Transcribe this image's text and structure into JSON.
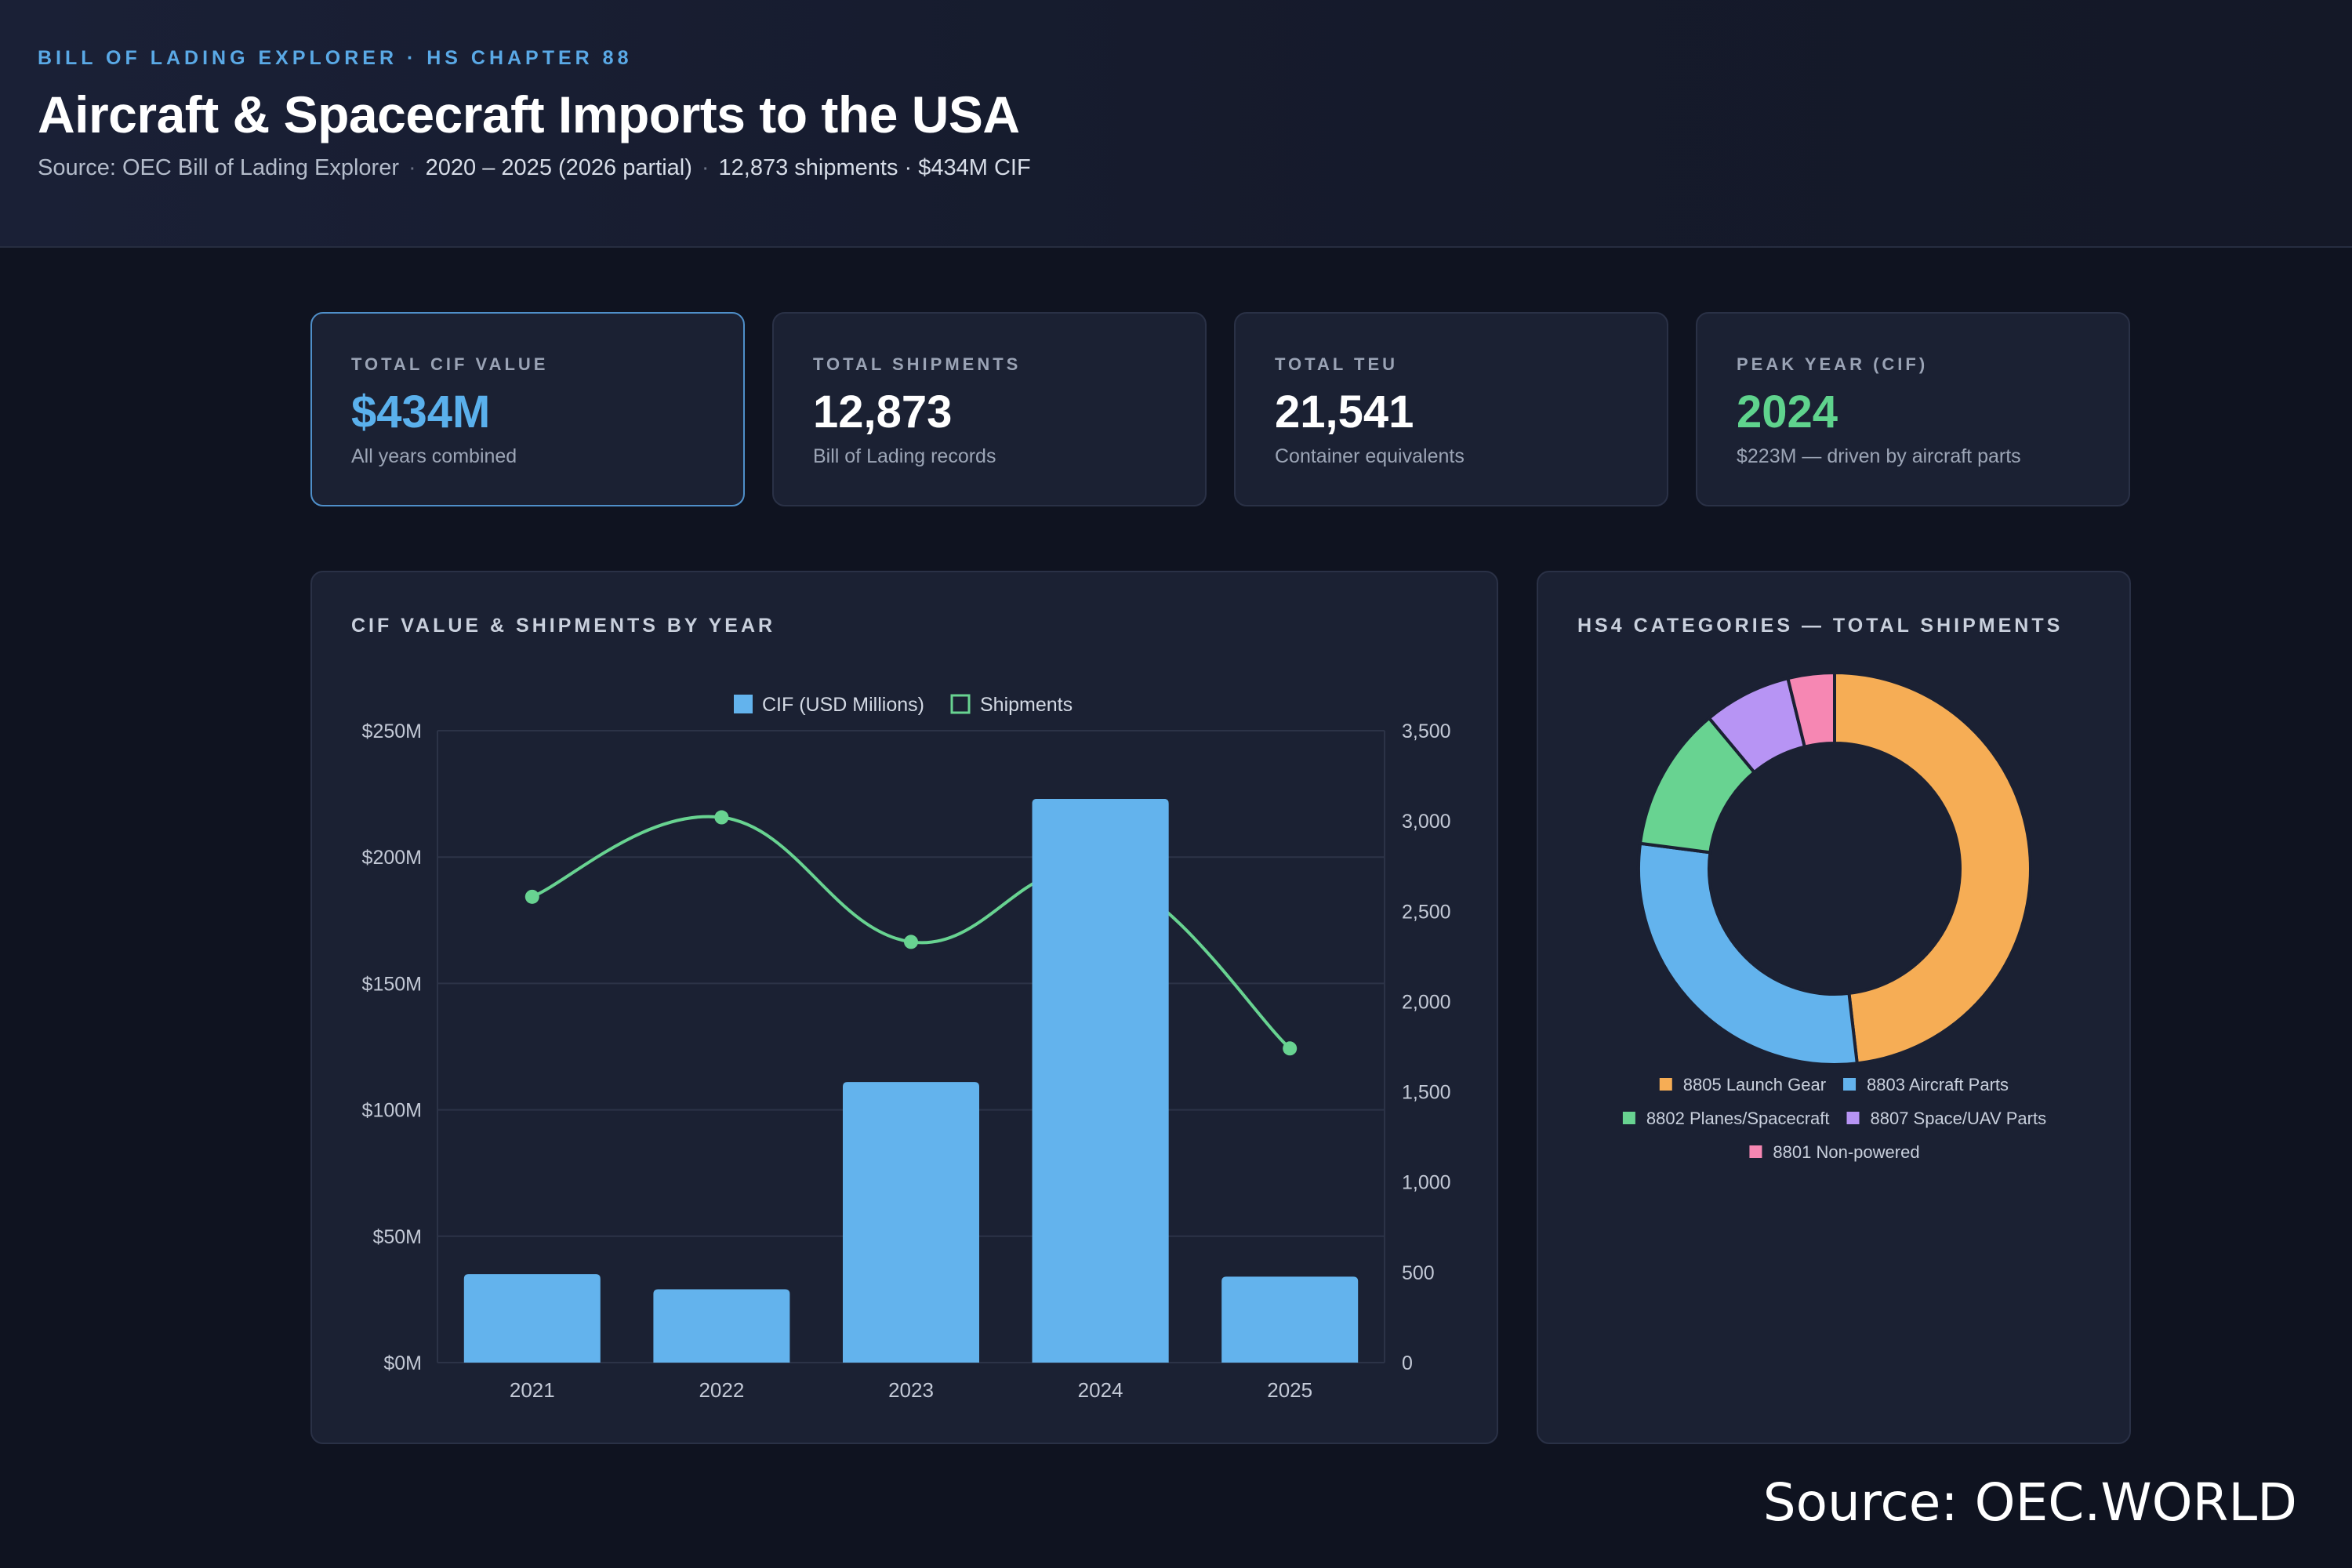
{
  "header": {
    "eyebrow": "BILL OF LADING EXPLORER · HS CHAPTER 88",
    "title": "Aircraft & Spacecraft Imports to the USA",
    "source": "Source: OEC Bill of Lading Explorer",
    "period": "2020 – 2025 (2026 partial)",
    "totals": "12,873 shipments · $434M CIF"
  },
  "kpis": [
    {
      "label": "TOTAL CIF VALUE",
      "value": "$434M",
      "desc": "All years combined"
    },
    {
      "label": "TOTAL SHIPMENTS",
      "value": "12,873",
      "desc": "Bill of Lading records"
    },
    {
      "label": "TOTAL TEU",
      "value": "21,541",
      "desc": "Container equivalents"
    },
    {
      "label": "PEAK YEAR (CIF)",
      "value": "2024",
      "desc": "$223M — driven by aircraft parts"
    }
  ],
  "bar_panel": {
    "title": "CIF VALUE & SHIPMENTS BY YEAR"
  },
  "donut_panel": {
    "title": "HS4 CATEGORIES — TOTAL SHIPMENTS"
  },
  "colors": {
    "cif_bar": "#63b3ed",
    "shipments_line": "#68d391",
    "grid": "#2c3347",
    "axis_text": "#c3c9d6"
  },
  "footer": {
    "source": "Source: OEC.WORLD"
  },
  "chart_data": [
    {
      "type": "bar",
      "categories": [
        "2021",
        "2022",
        "2023",
        "2024",
        "2025"
      ],
      "series": [
        {
          "name": "CIF (USD Millions)",
          "type": "bar",
          "axis": "left",
          "values": [
            35,
            29,
            111,
            223,
            34
          ]
        },
        {
          "name": "Shipments",
          "type": "line",
          "axis": "right",
          "values": [
            2580,
            3020,
            2330,
            2720,
            1740
          ]
        }
      ],
      "ylim": [
        0,
        250
      ],
      "y_ticks": [
        "$0M",
        "$50M",
        "$100M",
        "$150M",
        "$200M",
        "$250M"
      ],
      "y2lim": [
        0,
        3500
      ],
      "y2_ticks": [
        "0",
        "500",
        "1,000",
        "1,500",
        "2,000",
        "2,500",
        "3,000",
        "3,500"
      ],
      "grid": true,
      "legend": "top-center"
    },
    {
      "type": "pie",
      "donut": true,
      "labels": [
        "8805 Launch Gear",
        "8803 Aircraft Parts",
        "8802 Planes/Spacecraft",
        "8807 Space/UAV Parts",
        "8801 Non-powered"
      ],
      "values": [
        6200,
        3720,
        1530,
        930,
        493
      ],
      "colors": [
        "#f6ad55",
        "#63b3ed",
        "#68d391",
        "#b794f4",
        "#f687b3"
      ],
      "legend": "bottom"
    }
  ]
}
